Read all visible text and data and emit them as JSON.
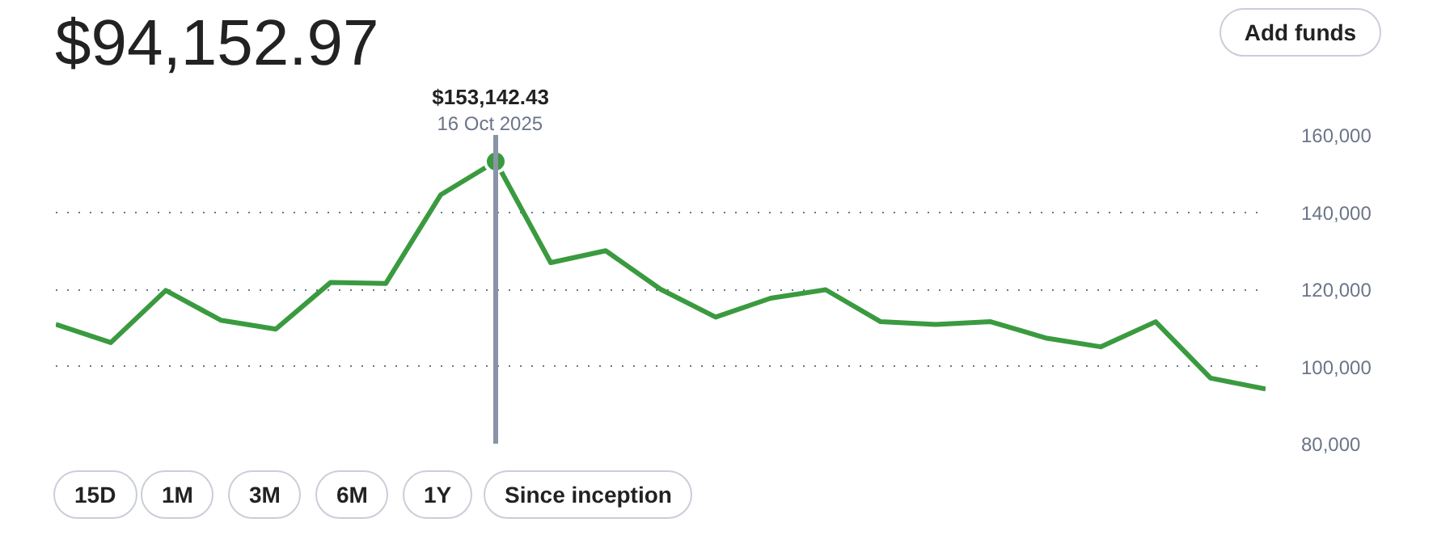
{
  "chart_data": {
    "type": "line",
    "title": "$94,152.97",
    "categories": [
      null,
      null,
      null,
      null,
      null,
      null,
      null,
      null,
      null,
      null,
      null,
      null,
      null,
      null,
      null,
      null,
      null,
      null,
      null,
      null,
      null,
      null,
      null
    ],
    "series": [
      {
        "color": "#3a9a3f",
        "values": [
          110900,
          106200,
          119700,
          112000,
          109700,
          121800,
          121500,
          144500,
          153142.43,
          126900,
          130000,
          120000,
          112800,
          117700,
          119900,
          111600,
          110900,
          111600,
          107400,
          105100,
          111600,
          97000,
          94152.97
        ]
      }
    ],
    "ylim": [
      80000,
      160000
    ],
    "yticks": [
      {
        "value": 80000,
        "label": "80,000"
      },
      {
        "value": 100000,
        "label": "100,000"
      },
      {
        "value": 120000,
        "label": "120,000"
      },
      {
        "value": 140000,
        "label": "140,000"
      },
      {
        "value": 160000,
        "label": "160,000"
      }
    ],
    "grid": "y",
    "marker": "none",
    "line_style": "solid",
    "annotations": [
      {
        "text": "$153,142.43",
        "y": 153142.43
      },
      {
        "text": "16 Oct 2025",
        "y": 153142.43
      },
      "Add funds",
      "15D",
      "1M",
      "3M",
      "6M",
      "1Y",
      "Since inception"
    ]
  }
}
